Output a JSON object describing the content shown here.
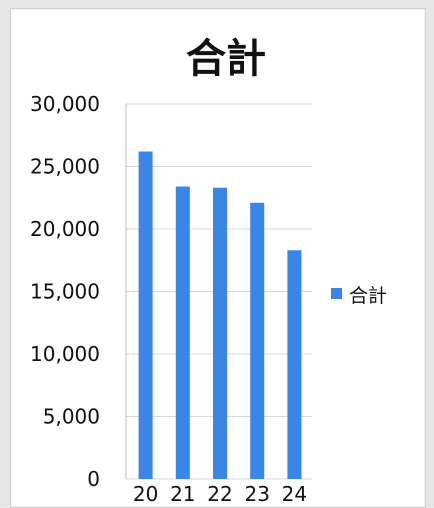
{
  "chart_data": {
    "type": "bar",
    "title": "合計",
    "categories": [
      "20",
      "21",
      "22",
      "23",
      "24"
    ],
    "series": [
      {
        "name": "合計",
        "values": [
          26200,
          23400,
          23300,
          22100,
          18300
        ],
        "color": "#3a86e8"
      }
    ],
    "ylim": [
      0,
      30000
    ],
    "yticks": [
      "0",
      "5,000",
      "10,000",
      "15,000",
      "20,000",
      "25,000",
      "30,000"
    ],
    "grid": true,
    "legend": "right"
  }
}
